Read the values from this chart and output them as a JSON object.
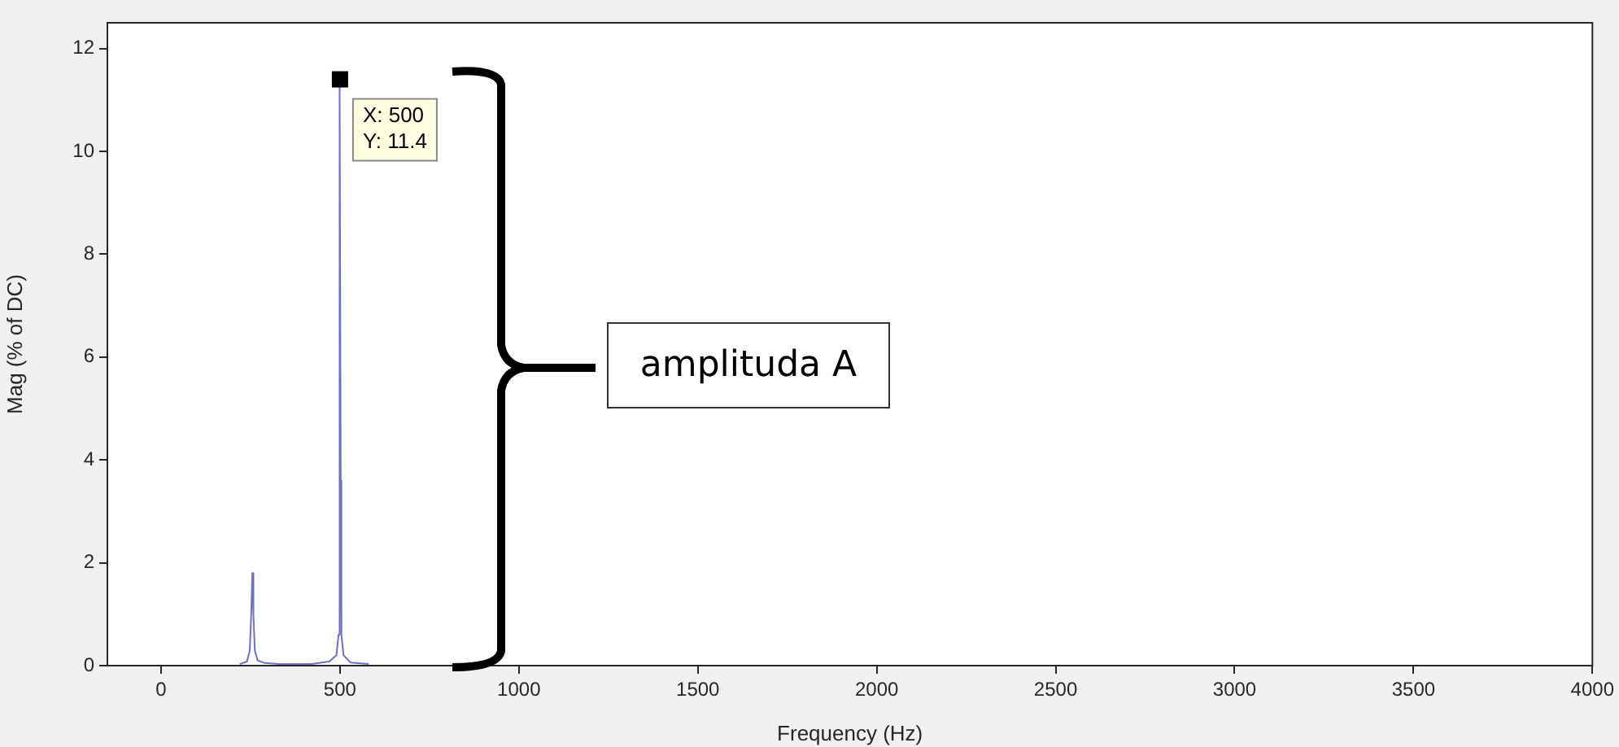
{
  "chart_data": {
    "type": "line",
    "xlabel": "Frequency (Hz)",
    "ylabel": "Mag (% of DC)",
    "series": [
      {
        "color": "#6f6fc4",
        "x": [
          220,
          240,
          248,
          252,
          255,
          258,
          262,
          270,
          290,
          330,
          420,
          470,
          490,
          496,
          498,
          500,
          502,
          504,
          510,
          530,
          580
        ],
        "values": [
          0.03,
          0.08,
          0.3,
          1.0,
          1.8,
          1.0,
          0.3,
          0.1,
          0.05,
          0.03,
          0.03,
          0.08,
          0.2,
          0.6,
          3.6,
          11.4,
          3.6,
          0.6,
          0.2,
          0.06,
          0.03
        ]
      }
    ],
    "xlim": [
      -150,
      4000
    ],
    "xticks": [
      0,
      500,
      1000,
      1500,
      2000,
      2500,
      3000,
      3500,
      4000
    ],
    "ylim": [
      0,
      12.5
    ],
    "yticks": [
      0,
      2,
      4,
      6,
      8,
      10,
      12
    ],
    "grid": false,
    "legend": false,
    "marker": "none",
    "line_style": "solid",
    "annotations": [
      {
        "text": "X: 500\nY: 11.4",
        "x": 500,
        "y": 11.4
      },
      "amplituda A"
    ]
  }
}
